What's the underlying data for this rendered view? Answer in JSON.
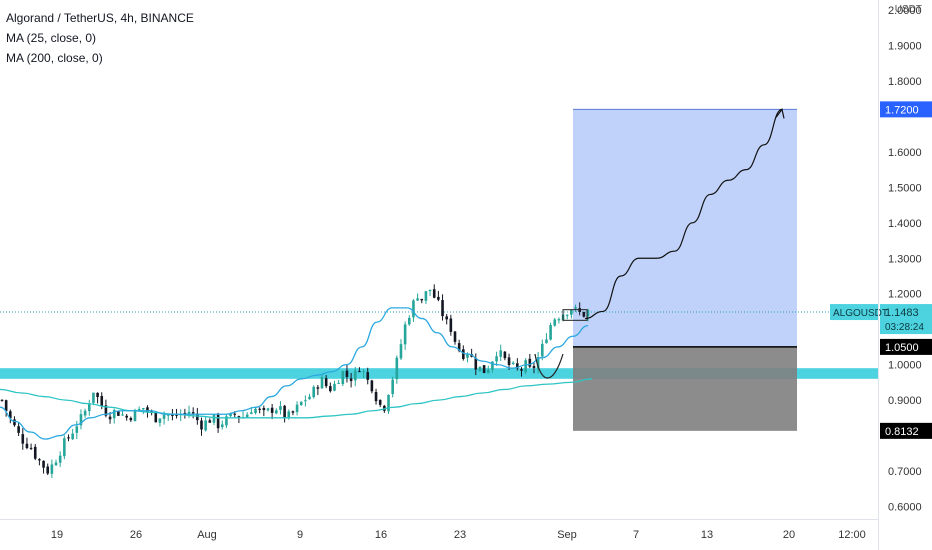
{
  "legend": {
    "symbol_line": "Algorand / TetherUS, 4h, BINANCE",
    "ma1": "MA (25, close, 0)",
    "ma2": "MA (200, close, 0)"
  },
  "colors": {
    "up": "#26a69a",
    "down": "#131722",
    "ma25": "#2ba8e0",
    "ma200": "#2ec4c4",
    "support_zone": "#4dd2e0",
    "target_zone": "#b9cdf9",
    "stop_zone": "#7f7f7f",
    "price_label": "#4dd2e0",
    "dotted_line": "#26a0b8"
  },
  "chart_data": {
    "type": "candlestick",
    "title": "Algorand / TetherUS, 4h, BINANCE",
    "currency": "USDT",
    "y_ticks": [
      "2.0000",
      "1.9000",
      "1.8000",
      "1.6000",
      "1.5000",
      "1.4000",
      "1.3000",
      "1.2000",
      "1.0000",
      "0.9000",
      "0.7000",
      "0.6000"
    ],
    "x_ticks": [
      "19",
      "26",
      "Aug",
      "9",
      "16",
      "23",
      "Sep",
      "7",
      "13",
      "20",
      "12:00"
    ],
    "ylim": [
      0.59,
      2.02
    ],
    "price_path": [
      0.9,
      0.86,
      0.83,
      0.8,
      0.78,
      0.77,
      0.74,
      0.72,
      0.7,
      0.72,
      0.75,
      0.78,
      0.8,
      0.83,
      0.85,
      0.88,
      0.93,
      0.9,
      0.87,
      0.86,
      0.87,
      0.86,
      0.85,
      0.86,
      0.87,
      0.88,
      0.86,
      0.85,
      0.86,
      0.86,
      0.85,
      0.86,
      0.86,
      0.87,
      0.85,
      0.83,
      0.84,
      0.85,
      0.83,
      0.84,
      0.85,
      0.86,
      0.85,
      0.86,
      0.88,
      0.87,
      0.86,
      0.87,
      0.88,
      0.87,
      0.85,
      0.86,
      0.88,
      0.9,
      0.91,
      0.93,
      0.96,
      0.94,
      0.93,
      0.96,
      0.98,
      0.96,
      0.97,
      1.0,
      0.96,
      0.94,
      0.9,
      0.87,
      0.93,
      0.98,
      1.05,
      1.12,
      1.16,
      1.2,
      1.18,
      1.22,
      1.19,
      1.16,
      1.12,
      1.1,
      1.05,
      1.03,
      1.04,
      1.0,
      0.99,
      0.98,
      1.01,
      1.04,
      1.02,
      1.0,
      0.99,
      0.98,
      1.0,
      0.98,
      1.01,
      1.05,
      1.1,
      1.13,
      1.14,
      1.15,
      1.16,
      1.15,
      1.14,
      1.15
    ],
    "ma25_path": [
      0.88,
      0.84,
      0.81,
      0.79,
      0.8,
      0.83,
      0.85,
      0.86,
      0.87,
      0.87,
      0.87,
      0.86,
      0.86,
      0.86,
      0.86,
      0.86,
      0.87,
      0.88,
      0.91,
      0.94,
      0.96,
      0.97,
      0.98,
      1.0,
      1.05,
      1.12,
      1.16,
      1.16,
      1.13,
      1.09,
      1.05,
      1.03,
      1.01,
      1.0,
      0.99,
      1.0,
      1.02,
      1.05,
      1.08,
      1.11
    ],
    "ma200_path": [
      0.93,
      0.92,
      0.91,
      0.9,
      0.89,
      0.88,
      0.87,
      0.865,
      0.86,
      0.855,
      0.85,
      0.85,
      0.85,
      0.85,
      0.85,
      0.855,
      0.86,
      0.87,
      0.88,
      0.89,
      0.9,
      0.91,
      0.92,
      0.93,
      0.94,
      0.945,
      0.95,
      0.96
    ],
    "projection_path": [
      1.13,
      1.15,
      1.25,
      1.3,
      1.3,
      1.32,
      1.4,
      1.48,
      1.52,
      1.55,
      1.62,
      1.72
    ],
    "long_position": {
      "entry": 1.05,
      "target": 1.72,
      "stop": 0.8132
    },
    "support_zone": [
      0.96,
      0.99
    ],
    "last_price": 1.1483,
    "labels": {
      "symbol": "ALGOUSDT",
      "last_price": "1.1483",
      "countdown": "03:28:24",
      "target": "1.7200",
      "entry": "1.0500",
      "stop": "0.8132"
    }
  }
}
